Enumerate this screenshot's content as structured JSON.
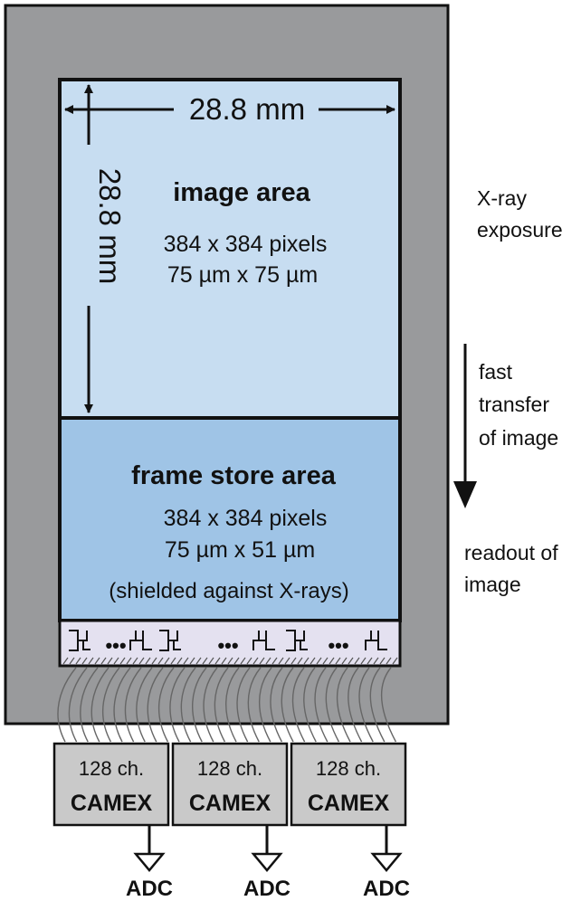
{
  "colors": {
    "frame_gray": "#999a9c",
    "image_area_fill": "#c7ddf1",
    "frame_store_fill": "#9fc4e6",
    "readout_strip_fill": "#e4e1f0",
    "chip_fill": "#c9c9c9"
  },
  "image_area": {
    "title": "image area",
    "pixels": "384 x 384 pixels",
    "pixel_size": "75 µm x 75 µm",
    "width_label": "28.8 mm",
    "height_label": "28.8 mm"
  },
  "frame_store_area": {
    "title": "frame store area",
    "pixels": "384 x 384 pixels",
    "pixel_size": "75 µm x 51 µm",
    "note": "(shielded against X-rays)"
  },
  "readout_register": {
    "ellipsis": "•••"
  },
  "side_labels": {
    "exposure": [
      "X-ray",
      "exposure"
    ],
    "transfer": [
      "fast",
      "transfer",
      "of image"
    ],
    "readout": [
      "readout of",
      "image"
    ]
  },
  "camex_chips": [
    {
      "channels": "128 ch.",
      "name": "CAMEX",
      "output": "ADC"
    },
    {
      "channels": "128 ch.",
      "name": "CAMEX",
      "output": "ADC"
    },
    {
      "channels": "128 ch.",
      "name": "CAMEX",
      "output": "ADC"
    }
  ]
}
